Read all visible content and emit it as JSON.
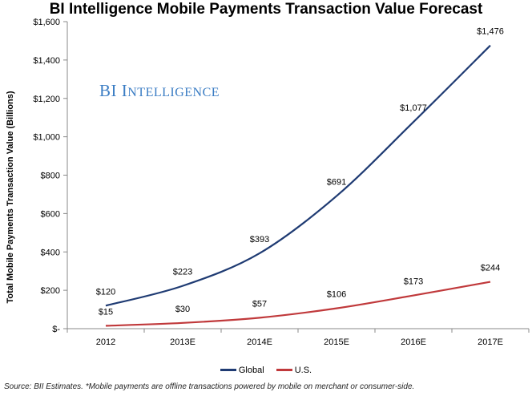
{
  "chart_data": {
    "type": "line",
    "title": "BI Intelligence Mobile Payments Transaction Value Forecast",
    "ylabel": "Total Mobile Payments Transaction Value (Billions)",
    "xlabel": "",
    "categories": [
      "2012",
      "2013E",
      "2014E",
      "2015E",
      "2016E",
      "2017E"
    ],
    "ylim": [
      0,
      1600
    ],
    "yticks": [
      0,
      200,
      400,
      600,
      800,
      1000,
      1200,
      1400,
      1600
    ],
    "ytick_labels": [
      "$-",
      "$200",
      "$400",
      "$600",
      "$800",
      "$1,000",
      "$1,200",
      "$1,400",
      "$1,600"
    ],
    "grid": false,
    "legend_position": "bottom",
    "series": [
      {
        "name": "Global",
        "color": "#1f3b73",
        "values": [
          120,
          223,
          393,
          691,
          1077,
          1476
        ],
        "labels": [
          "$120",
          "$223",
          "$393",
          "$691",
          "$1,077",
          "$1,476"
        ]
      },
      {
        "name": "U.S.",
        "color": "#c0393b",
        "values": [
          15,
          30,
          57,
          106,
          173,
          244
        ],
        "labels": [
          "$15",
          "$30",
          "$57",
          "$106",
          "$173",
          "$244"
        ]
      }
    ]
  },
  "watermark": {
    "first": "BI",
    "initial": "I",
    "rest": "NTELLIGENCE"
  },
  "source": "Source: BII Estimates. *Mobile payments are offline transactions powered by mobile on merchant or consumer-side."
}
